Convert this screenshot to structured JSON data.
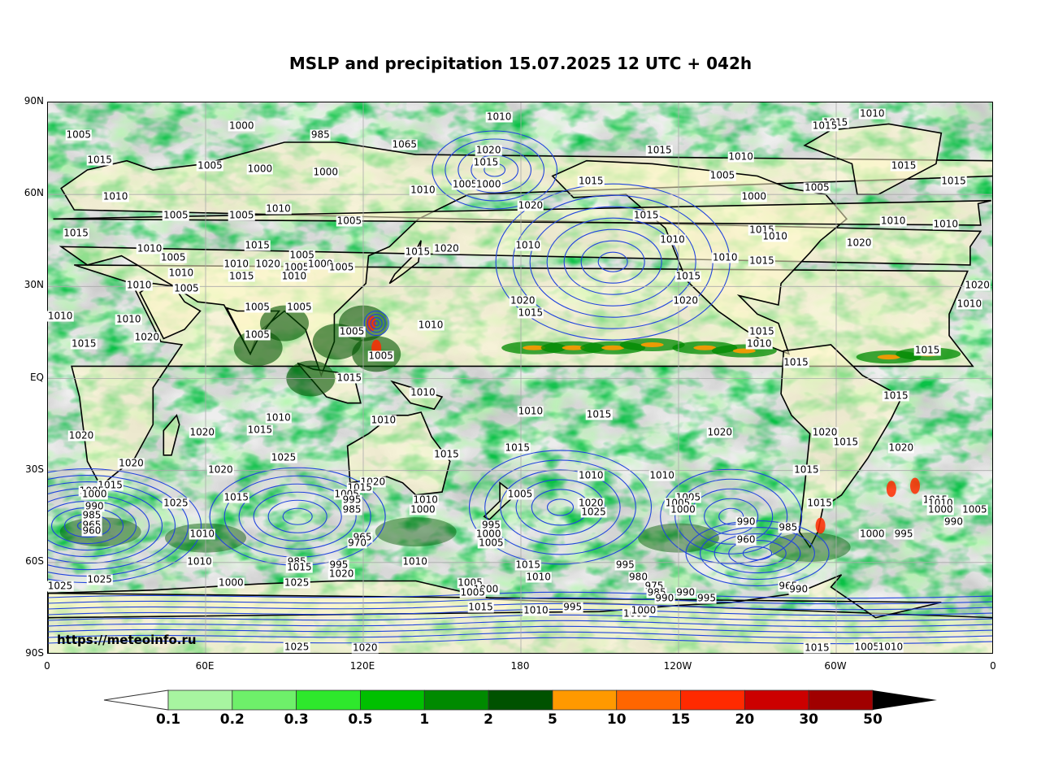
{
  "title": "MSLP and precipitation 15.07.2025 12 UTC + 042h",
  "watermark": "https://meteoinfo.ru",
  "lat_labels": [
    "90N",
    "60N",
    "30N",
    "EQ",
    "30S",
    "60S",
    "90S"
  ],
  "lon_labels": [
    "0",
    "60E",
    "120E",
    "180",
    "120W",
    "60W",
    "0"
  ],
  "colorbar": {
    "ticks": [
      "0.1",
      "0.2",
      "0.3",
      "0.5",
      "1",
      "2",
      "5",
      "10",
      "15",
      "20",
      "30",
      "50"
    ],
    "colors": [
      "#a7f5a0",
      "#6ef06a",
      "#2ee82c",
      "#00c000",
      "#008a00",
      "#005200",
      "#ff9900",
      "#ff6600",
      "#ff2a00",
      "#cc0000",
      "#a00000"
    ],
    "under_color": "#ffffff",
    "over_color": "#000000"
  },
  "isobar_labels": [
    {
      "v": "1010",
      "lon": 172,
      "lat": 85
    },
    {
      "v": "1010",
      "lon": -46,
      "lat": 86
    },
    {
      "v": "1015",
      "lon": -60,
      "lat": 83
    },
    {
      "v": "1015",
      "lon": -64,
      "lat": 82
    },
    {
      "v": "1000",
      "lon": 74,
      "lat": 82
    },
    {
      "v": "985",
      "lon": 104,
      "lat": 79
    },
    {
      "v": "1005",
      "lon": 12,
      "lat": 79
    },
    {
      "v": "1065",
      "lon": 136,
      "lat": 76
    },
    {
      "v": "1020",
      "lon": 168,
      "lat": 74
    },
    {
      "v": "1015",
      "lon": 167,
      "lat": 70
    },
    {
      "v": "1015",
      "lon": -127,
      "lat": 74
    },
    {
      "v": "1010",
      "lon": -96,
      "lat": 72
    },
    {
      "v": "1015",
      "lon": 20,
      "lat": 71
    },
    {
      "v": "1005",
      "lon": 62,
      "lat": 69
    },
    {
      "v": "1000",
      "lon": 81,
      "lat": 68
    },
    {
      "v": "1000",
      "lon": 106,
      "lat": 67
    },
    {
      "v": "1005",
      "lon": 159,
      "lat": 63
    },
    {
      "v": "1000",
      "lon": 168,
      "lat": 63
    },
    {
      "v": "1010",
      "lon": 143,
      "lat": 61
    },
    {
      "v": "1015",
      "lon": -153,
      "lat": 64
    },
    {
      "v": "1005",
      "lon": -103,
      "lat": 66
    },
    {
      "v": "1000",
      "lon": -91,
      "lat": 59
    },
    {
      "v": "1005",
      "lon": -67,
      "lat": 62
    },
    {
      "v": "1015",
      "lon": -34,
      "lat": 69
    },
    {
      "v": "1015",
      "lon": -15,
      "lat": 64
    },
    {
      "v": "1010",
      "lon": 26,
      "lat": 59
    },
    {
      "v": "1010",
      "lon": 88,
      "lat": 55
    },
    {
      "v": "1020",
      "lon": -176,
      "lat": 56
    },
    {
      "v": "1005",
      "lon": 49,
      "lat": 53
    },
    {
      "v": "1005",
      "lon": 74,
      "lat": 53
    },
    {
      "v": "1005",
      "lon": 115,
      "lat": 51
    },
    {
      "v": "1015",
      "lon": -132,
      "lat": 53
    },
    {
      "v": "1010",
      "lon": -38,
      "lat": 51
    },
    {
      "v": "1010",
      "lon": -18,
      "lat": 50
    },
    {
      "v": "1015",
      "lon": 11,
      "lat": 47
    },
    {
      "v": "1015",
      "lon": -88,
      "lat": 48
    },
    {
      "v": "1010",
      "lon": -83,
      "lat": 46
    },
    {
      "v": "1020",
      "lon": -51,
      "lat": 44
    },
    {
      "v": "1020",
      "lon": 152,
      "lat": 42
    },
    {
      "v": "1010",
      "lon": 183,
      "lat": 43
    },
    {
      "v": "1010",
      "lon": -122,
      "lat": 45
    },
    {
      "v": "1015",
      "lon": 80,
      "lat": 43
    },
    {
      "v": "1010",
      "lon": 39,
      "lat": 42
    },
    {
      "v": "1015",
      "lon": 141,
      "lat": 41
    },
    {
      "v": "1010",
      "lon": -102,
      "lat": 39
    },
    {
      "v": "1015",
      "lon": -88,
      "lat": 38
    },
    {
      "v": "1005",
      "lon": 48,
      "lat": 39
    },
    {
      "v": "1005",
      "lon": 97,
      "lat": 40
    },
    {
      "v": "1010",
      "lon": 72,
      "lat": 37
    },
    {
      "v": "1020",
      "lon": 84,
      "lat": 37
    },
    {
      "v": "1005",
      "lon": 95,
      "lat": 36
    },
    {
      "v": "1000",
      "lon": 104,
      "lat": 37
    },
    {
      "v": "1005",
      "lon": 112,
      "lat": 36
    },
    {
      "v": "1010",
      "lon": 51,
      "lat": 34
    },
    {
      "v": "1015",
      "lon": 74,
      "lat": 33
    },
    {
      "v": "1010",
      "lon": 94,
      "lat": 33
    },
    {
      "v": "1015",
      "lon": -116,
      "lat": 33
    },
    {
      "v": "1020",
      "lon": -6,
      "lat": 30
    },
    {
      "v": "1010",
      "lon": 35,
      "lat": 30
    },
    {
      "v": "1005",
      "lon": 53,
      "lat": 29
    },
    {
      "v": "1020",
      "lon": -117,
      "lat": 25
    },
    {
      "v": "1010",
      "lon": -9,
      "lat": 24
    },
    {
      "v": "1020",
      "lon": -179,
      "lat": 25
    },
    {
      "v": "1005",
      "lon": 80,
      "lat": 23
    },
    {
      "v": "1005",
      "lon": 96,
      "lat": 23
    },
    {
      "v": "1015",
      "lon": -176,
      "lat": 21
    },
    {
      "v": "1010",
      "lon": 5,
      "lat": 20
    },
    {
      "v": "1010",
      "lon": 31,
      "lat": 19
    },
    {
      "v": "1010",
      "lon": 146,
      "lat": 17
    },
    {
      "v": "1005",
      "lon": 80,
      "lat": 14
    },
    {
      "v": "1005",
      "lon": 116,
      "lat": 15
    },
    {
      "v": "1015",
      "lon": -88,
      "lat": 15
    },
    {
      "v": "1020",
      "lon": 38,
      "lat": 13
    },
    {
      "v": "1015",
      "lon": 14,
      "lat": 11
    },
    {
      "v": "1010",
      "lon": -89,
      "lat": 11
    },
    {
      "v": "1015",
      "lon": -25,
      "lat": 9
    },
    {
      "v": "1005",
      "lon": 127,
      "lat": 7
    },
    {
      "v": "1015",
      "lon": -75,
      "lat": 5
    },
    {
      "v": "1015",
      "lon": 115,
      "lat": 0
    },
    {
      "v": "1010",
      "lon": 143,
      "lat": -5
    },
    {
      "v": "1015",
      "lon": -37,
      "lat": -6
    },
    {
      "v": "1010",
      "lon": -176,
      "lat": -11
    },
    {
      "v": "1015",
      "lon": -150,
      "lat": -12
    },
    {
      "v": "1010",
      "lon": 88,
      "lat": -13
    },
    {
      "v": "1010",
      "lon": 128,
      "lat": -14
    },
    {
      "v": "1020",
      "lon": -104,
      "lat": -18
    },
    {
      "v": "1020",
      "lon": -64,
      "lat": -18
    },
    {
      "v": "1015",
      "lon": 81,
      "lat": -17
    },
    {
      "v": "1020",
      "lon": 59,
      "lat": -18
    },
    {
      "v": "1020",
      "lon": 13,
      "lat": -19
    },
    {
      "v": "1015",
      "lon": -56,
      "lat": -21
    },
    {
      "v": "1020",
      "lon": -35,
      "lat": -23
    },
    {
      "v": "1015",
      "lon": 179,
      "lat": -23
    },
    {
      "v": "1015",
      "lon": 152,
      "lat": -25
    },
    {
      "v": "1025",
      "lon": 90,
      "lat": -26
    },
    {
      "v": "1020",
      "lon": 32,
      "lat": -28
    },
    {
      "v": "1020",
      "lon": 66,
      "lat": -30
    },
    {
      "v": "1015",
      "lon": -71,
      "lat": -30
    },
    {
      "v": "1010",
      "lon": -153,
      "lat": -32
    },
    {
      "v": "1010",
      "lon": -126,
      "lat": -32
    },
    {
      "v": "1020",
      "lon": 124,
      "lat": -34
    },
    {
      "v": "1015",
      "lon": 24,
      "lat": -35
    },
    {
      "v": "1015",
      "lon": 119,
      "lat": -36
    },
    {
      "v": "1005",
      "lon": 17,
      "lat": -37
    },
    {
      "v": "1005",
      "lon": 114,
      "lat": -38
    },
    {
      "v": "1005",
      "lon": 180,
      "lat": -38
    },
    {
      "v": "1005",
      "lon": -116,
      "lat": -39
    },
    {
      "v": "1015",
      "lon": 72,
      "lat": -39
    },
    {
      "v": "1000",
      "lon": 18,
      "lat": -38
    },
    {
      "v": "1025",
      "lon": 49,
      "lat": -41
    },
    {
      "v": "1010",
      "lon": 144,
      "lat": -40
    },
    {
      "v": "995",
      "lon": 116,
      "lat": -40
    },
    {
      "v": "1020",
      "lon": -153,
      "lat": -41
    },
    {
      "v": "1005",
      "lon": -120,
      "lat": -41
    },
    {
      "v": "990",
      "lon": 18,
      "lat": -42
    },
    {
      "v": "1015",
      "lon": -66,
      "lat": -41
    },
    {
      "v": "1015",
      "lon": -22,
      "lat": -40
    },
    {
      "v": "1010",
      "lon": -20,
      "lat": -41
    },
    {
      "v": "1000",
      "lon": 143,
      "lat": -43
    },
    {
      "v": "985",
      "lon": 116,
      "lat": -43
    },
    {
      "v": "1025",
      "lon": -152,
      "lat": -44
    },
    {
      "v": "1000",
      "lon": -118,
      "lat": -43
    },
    {
      "v": "1000",
      "lon": -20,
      "lat": -43
    },
    {
      "v": "1005",
      "lon": -7,
      "lat": -43
    },
    {
      "v": "985",
      "lon": 17,
      "lat": -45
    },
    {
      "v": "990",
      "lon": -94,
      "lat": -47
    },
    {
      "v": "990",
      "lon": -15,
      "lat": -47
    },
    {
      "v": "965",
      "lon": 17,
      "lat": -48
    },
    {
      "v": "995",
      "lon": 169,
      "lat": -48
    },
    {
      "v": "985",
      "lon": -78,
      "lat": -49
    },
    {
      "v": "960",
      "lon": 17,
      "lat": -50
    },
    {
      "v": "1000",
      "lon": 168,
      "lat": -51
    },
    {
      "v": "1010",
      "lon": 59,
      "lat": -51
    },
    {
      "v": "1000",
      "lon": -46,
      "lat": -51
    },
    {
      "v": "995",
      "lon": -34,
      "lat": -51
    },
    {
      "v": "965",
      "lon": 120,
      "lat": -52
    },
    {
      "v": "1005",
      "lon": 169,
      "lat": -54
    },
    {
      "v": "970",
      "lon": 118,
      "lat": -54
    },
    {
      "v": "960",
      "lon": -94,
      "lat": -53
    },
    {
      "v": "985",
      "lon": 95,
      "lat": -60
    },
    {
      "v": "1010",
      "lon": 58,
      "lat": -60
    },
    {
      "v": "1010",
      "lon": 140,
      "lat": -60
    },
    {
      "v": "995",
      "lon": 111,
      "lat": -61
    },
    {
      "v": "1015",
      "lon": 183,
      "lat": -61
    },
    {
      "v": "995",
      "lon": -140,
      "lat": -61
    },
    {
      "v": "1015",
      "lon": 96,
      "lat": -62
    },
    {
      "v": "1020",
      "lon": 112,
      "lat": -64
    },
    {
      "v": "1010",
      "lon": 187,
      "lat": -65
    },
    {
      "v": "980",
      "lon": -135,
      "lat": -65
    },
    {
      "v": "1025",
      "lon": 20,
      "lat": -66
    },
    {
      "v": "1000",
      "lon": 70,
      "lat": -67
    },
    {
      "v": "1025",
      "lon": 95,
      "lat": -67
    },
    {
      "v": "1005",
      "lon": 161,
      "lat": -67
    },
    {
      "v": "975",
      "lon": -129,
      "lat": -68
    },
    {
      "v": "965",
      "lon": -78,
      "lat": -68
    },
    {
      "v": "990",
      "lon": -74,
      "lat": -69
    },
    {
      "v": "1000",
      "lon": 167,
      "lat": -69
    },
    {
      "v": "1005",
      "lon": 162,
      "lat": -70
    },
    {
      "v": "985",
      "lon": -128,
      "lat": -70
    },
    {
      "v": "990",
      "lon": -117,
      "lat": -70
    },
    {
      "v": "990",
      "lon": -125,
      "lat": -72
    },
    {
      "v": "995",
      "lon": -109,
      "lat": -72
    },
    {
      "v": "1025",
      "lon": 4,
      "lat": -68
    },
    {
      "v": "995",
      "lon": -160,
      "lat": -75
    },
    {
      "v": "1015",
      "lon": 165,
      "lat": -75
    },
    {
      "v": "1010",
      "lon": 186,
      "lat": -76
    },
    {
      "v": "1005",
      "lon": -136,
      "lat": -77
    },
    {
      "v": "1000",
      "lon": -133,
      "lat": -76
    },
    {
      "v": "1025",
      "lon": 95,
      "lat": -88
    },
    {
      "v": "1020",
      "lon": 121,
      "lat": -89
    },
    {
      "v": "1015",
      "lon": -67,
      "lat": -89
    },
    {
      "v": "1005",
      "lon": -48,
      "lat": -88
    },
    {
      "v": "1010",
      "lon": -39,
      "lat": -88
    }
  ]
}
